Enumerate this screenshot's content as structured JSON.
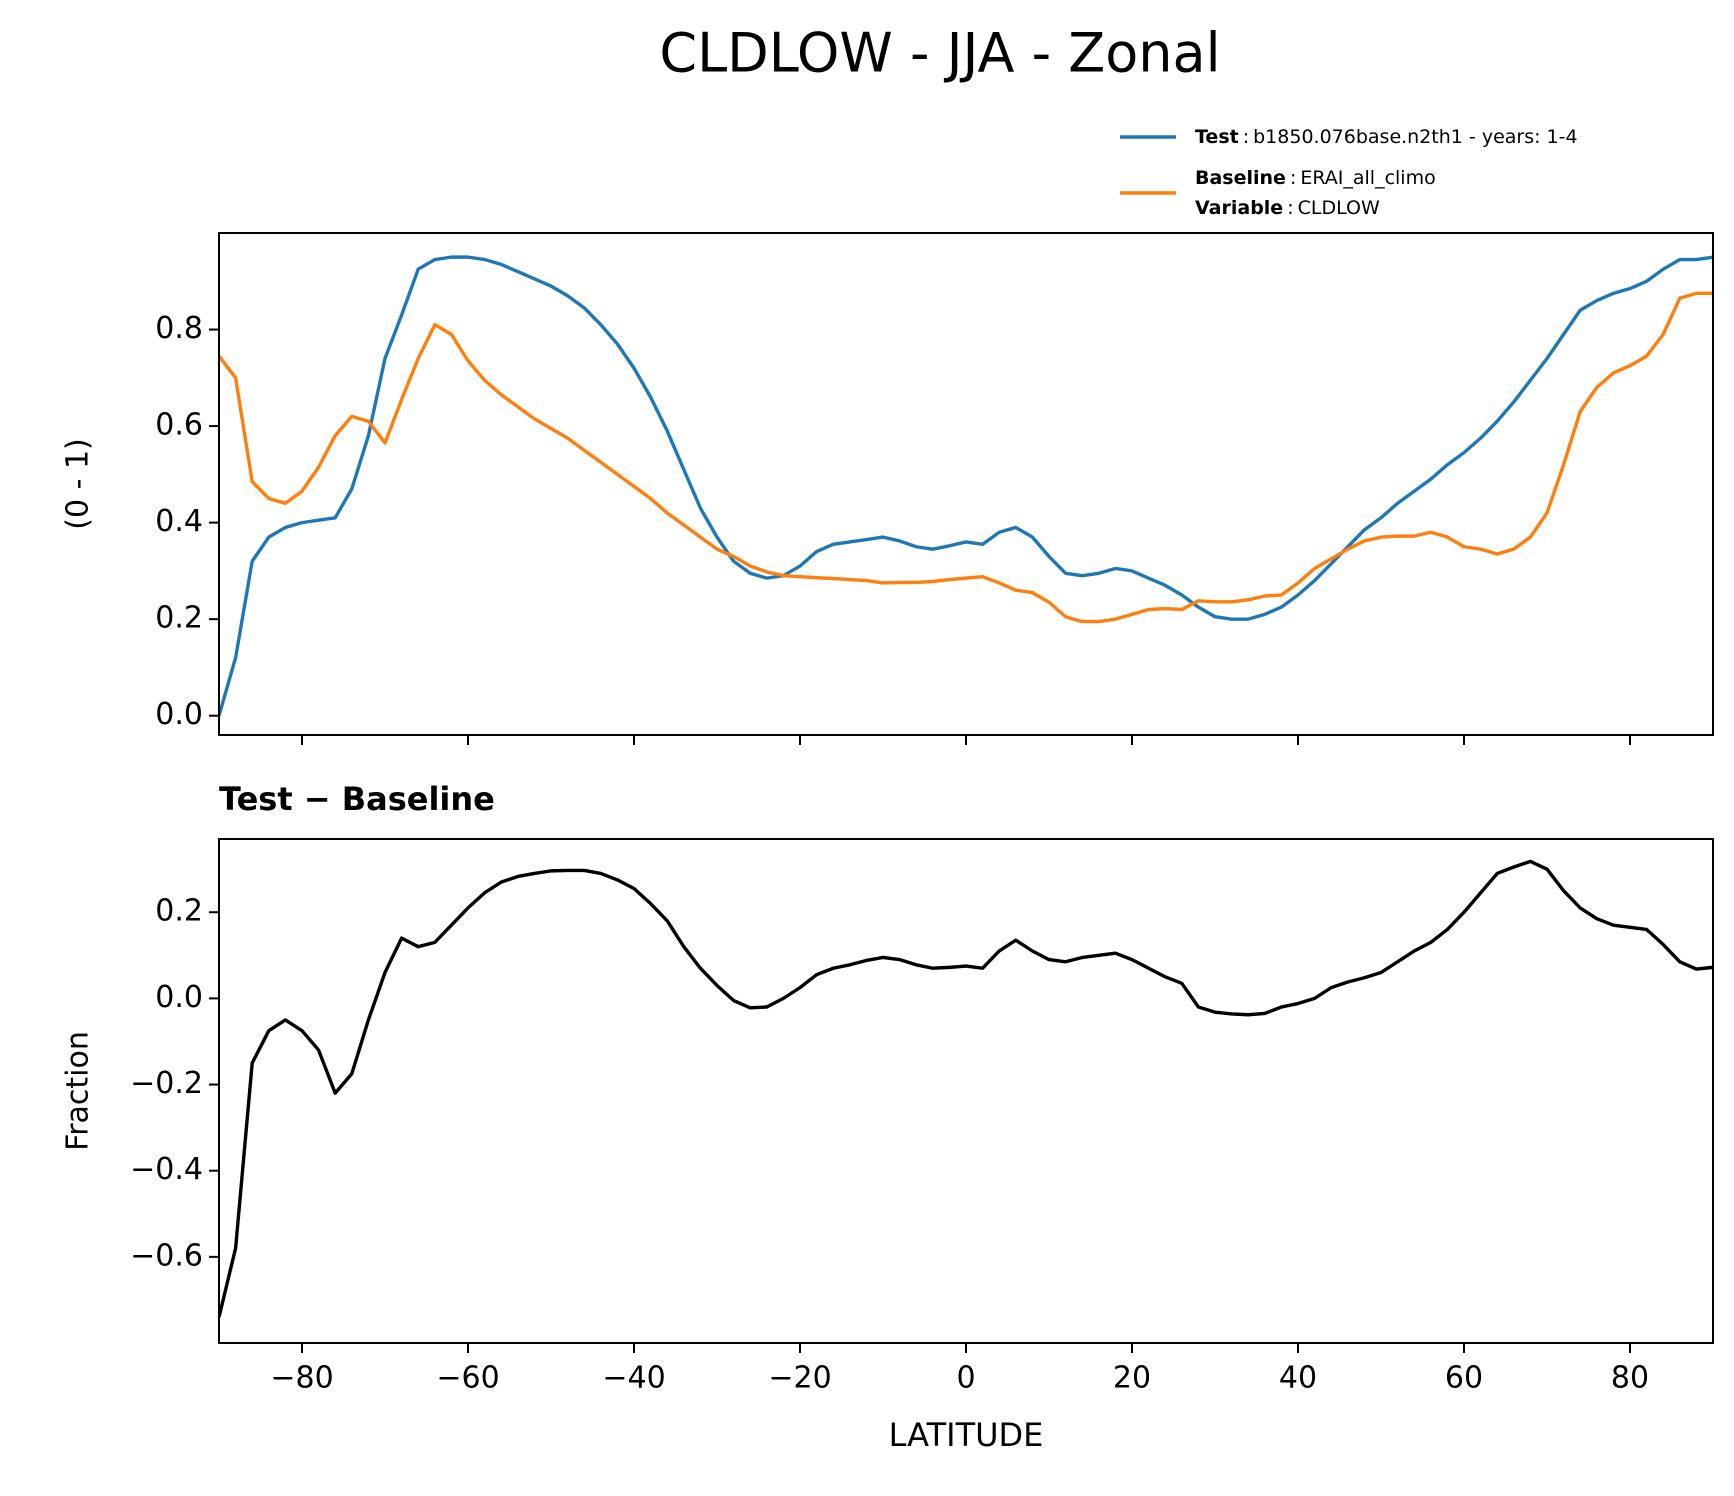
{
  "title": "CLDLOW - JJA - Zonal",
  "chart_data": [
    {
      "type": "line",
      "ylabel": "(0 - 1)",
      "legend_separator": ":",
      "legend_variable": {
        "name": "Variable",
        "text": "CLDLOW"
      },
      "x": [
        -90,
        -88,
        -86,
        -84,
        -82,
        -80,
        -78,
        -76,
        -74,
        -72,
        -70,
        -68,
        -66,
        -64,
        -62,
        -60,
        -58,
        -56,
        -54,
        -52,
        -50,
        -48,
        -46,
        -44,
        -42,
        -40,
        -38,
        -36,
        -34,
        -32,
        -30,
        -28,
        -26,
        -24,
        -22,
        -20,
        -18,
        -16,
        -14,
        -12,
        -10,
        -8,
        -6,
        -4,
        -2,
        0,
        2,
        4,
        6,
        8,
        10,
        12,
        14,
        16,
        18,
        20,
        22,
        24,
        26,
        28,
        30,
        32,
        34,
        36,
        38,
        40,
        42,
        44,
        46,
        48,
        50,
        52,
        54,
        56,
        58,
        60,
        62,
        64,
        66,
        68,
        70,
        72,
        74,
        76,
        78,
        80,
        82,
        84,
        86,
        88,
        90
      ],
      "series": [
        {
          "name": "Test",
          "description": "b1850.076base.n2th1 - years: 1-4",
          "color": "#1f77b4",
          "values": [
            0.0,
            0.12,
            0.32,
            0.37,
            0.39,
            0.4,
            0.405,
            0.41,
            0.47,
            0.58,
            0.74,
            0.83,
            0.925,
            0.945,
            0.95,
            0.95,
            0.945,
            0.935,
            0.92,
            0.905,
            0.89,
            0.87,
            0.845,
            0.81,
            0.77,
            0.72,
            0.66,
            0.59,
            0.51,
            0.43,
            0.37,
            0.32,
            0.295,
            0.285,
            0.29,
            0.31,
            0.34,
            0.355,
            0.36,
            0.365,
            0.37,
            0.362,
            0.35,
            0.345,
            0.352,
            0.36,
            0.355,
            0.38,
            0.39,
            0.37,
            0.33,
            0.295,
            0.29,
            0.295,
            0.305,
            0.3,
            0.285,
            0.27,
            0.25,
            0.225,
            0.205,
            0.2,
            0.2,
            0.21,
            0.225,
            0.25,
            0.28,
            0.315,
            0.35,
            0.385,
            0.41,
            0.44,
            0.465,
            0.49,
            0.52,
            0.545,
            0.575,
            0.61,
            0.65,
            0.695,
            0.74,
            0.79,
            0.84,
            0.86,
            0.875,
            0.885,
            0.9,
            0.925,
            0.945,
            0.945,
            0.95
          ]
        },
        {
          "name": "Baseline",
          "description": "ERAI_all_climo",
          "color": "#ff7f0e",
          "values": [
            0.745,
            0.7,
            0.485,
            0.45,
            0.44,
            0.465,
            0.515,
            0.58,
            0.62,
            0.61,
            0.565,
            0.655,
            0.74,
            0.81,
            0.79,
            0.735,
            0.695,
            0.665,
            0.64,
            0.615,
            0.595,
            0.575,
            0.55,
            0.525,
            0.5,
            0.475,
            0.45,
            0.42,
            0.395,
            0.37,
            0.345,
            0.33,
            0.31,
            0.298,
            0.29,
            0.288,
            0.286,
            0.284,
            0.282,
            0.28,
            0.275,
            0.276,
            0.276,
            0.278,
            0.282,
            0.285,
            0.288,
            0.275,
            0.26,
            0.255,
            0.235,
            0.205,
            0.195,
            0.195,
            0.2,
            0.21,
            0.22,
            0.222,
            0.22,
            0.238,
            0.236,
            0.236,
            0.24,
            0.248,
            0.25,
            0.275,
            0.305,
            0.325,
            0.345,
            0.362,
            0.37,
            0.372,
            0.372,
            0.38,
            0.37,
            0.35,
            0.345,
            0.335,
            0.345,
            0.37,
            0.42,
            0.52,
            0.63,
            0.68,
            0.71,
            0.725,
            0.745,
            0.79,
            0.865,
            0.875,
            0.875
          ]
        }
      ],
      "xlim": [
        -90,
        90
      ],
      "xticks": [
        {
          "value": -80,
          "label": "−80"
        },
        {
          "value": -60,
          "label": "−60"
        },
        {
          "value": -40,
          "label": "−40"
        },
        {
          "value": -20,
          "label": "−20"
        },
        0,
        20,
        40,
        60,
        80
      ],
      "show_xtick_labels": false,
      "ylim": [
        -0.04,
        1.0
      ],
      "yticks": [
        {
          "value": 0,
          "label": "0.0"
        },
        0.2,
        0.4,
        0.6,
        0.8
      ]
    },
    {
      "type": "line",
      "title": "Test − Baseline",
      "xlabel": "LATITUDE",
      "ylabel": "Fraction",
      "x": [
        -90,
        -88,
        -86,
        -84,
        -82,
        -80,
        -78,
        -76,
        -74,
        -72,
        -70,
        -68,
        -66,
        -64,
        -62,
        -60,
        -58,
        -56,
        -54,
        -52,
        -50,
        -48,
        -46,
        -44,
        -42,
        -40,
        -38,
        -36,
        -34,
        -32,
        -30,
        -28,
        -26,
        -24,
        -22,
        -20,
        -18,
        -16,
        -14,
        -12,
        -10,
        -8,
        -6,
        -4,
        -2,
        0,
        2,
        4,
        6,
        8,
        10,
        12,
        14,
        16,
        18,
        20,
        22,
        24,
        26,
        28,
        30,
        32,
        34,
        36,
        38,
        40,
        42,
        44,
        46,
        48,
        50,
        52,
        54,
        56,
        58,
        60,
        62,
        64,
        66,
        68,
        70,
        72,
        74,
        76,
        78,
        80,
        82,
        84,
        86,
        88,
        90
      ],
      "series": [
        {
          "color": "#000000",
          "values": [
            -0.74,
            -0.58,
            -0.15,
            -0.075,
            -0.05,
            -0.075,
            -0.12,
            -0.22,
            -0.175,
            -0.05,
            0.06,
            0.14,
            0.12,
            0.13,
            0.17,
            0.21,
            0.245,
            0.27,
            0.283,
            0.29,
            0.296,
            0.297,
            0.297,
            0.29,
            0.275,
            0.255,
            0.22,
            0.18,
            0.12,
            0.07,
            0.03,
            -0.005,
            -0.022,
            -0.02,
            0.0,
            0.025,
            0.055,
            0.07,
            0.078,
            0.088,
            0.095,
            0.09,
            0.078,
            0.07,
            0.072,
            0.075,
            0.07,
            0.11,
            0.135,
            0.11,
            0.09,
            0.085,
            0.095,
            0.1,
            0.105,
            0.09,
            0.07,
            0.05,
            0.035,
            -0.02,
            -0.032,
            -0.036,
            -0.038,
            -0.035,
            -0.02,
            -0.012,
            0.0,
            0.025,
            0.038,
            0.048,
            0.06,
            0.085,
            0.11,
            0.13,
            0.16,
            0.2,
            0.245,
            0.29,
            0.305,
            0.318,
            0.3,
            0.25,
            0.21,
            0.185,
            0.17,
            0.165,
            0.16,
            0.125,
            0.085,
            0.068,
            0.072
          ]
        }
      ],
      "xlim": [
        -90,
        90
      ],
      "xticks": [
        {
          "value": -80,
          "label": "−80"
        },
        {
          "value": -60,
          "label": "−60"
        },
        {
          "value": -40,
          "label": "−40"
        },
        {
          "value": -20,
          "label": "−20"
        },
        0,
        20,
        40,
        60,
        80
      ],
      "show_xtick_labels": true,
      "ylim": [
        -0.8,
        0.37
      ],
      "yticks": [
        {
          "value": -0.6,
          "label": "−0.6"
        },
        {
          "value": -0.4,
          "label": "−0.4"
        },
        {
          "value": -0.2,
          "label": "−0.2"
        },
        {
          "value": 0,
          "label": "0.0"
        },
        0.2
      ]
    }
  ]
}
